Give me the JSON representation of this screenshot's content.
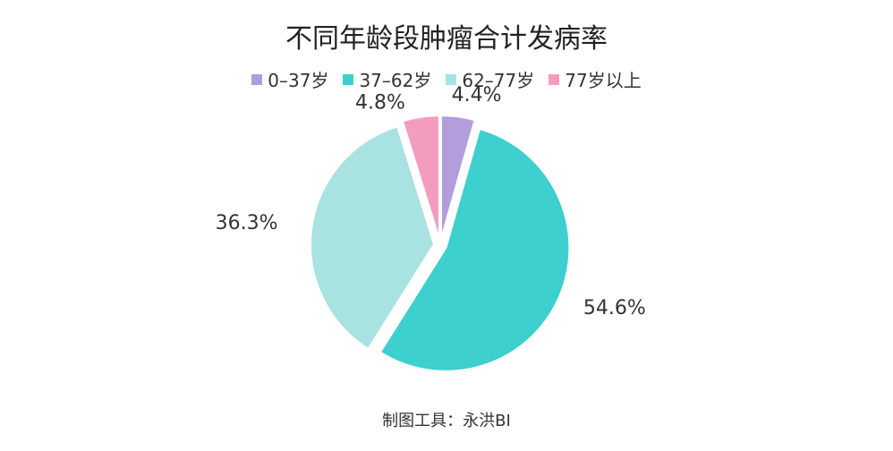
{
  "chart_data": {
    "type": "pie",
    "title": "不同年龄段肿瘤合计发病率",
    "categories": [
      "0–37岁",
      "37–62岁",
      "62–77岁",
      "77岁以上"
    ],
    "values": [
      4.4,
      54.6,
      36.3,
      4.8
    ],
    "labels": [
      "4.4%",
      "54.6%",
      "36.3%",
      "4.8%"
    ],
    "colors": [
      "#b39ddb",
      "#3ecfcf",
      "#a8e3e1",
      "#f49cbf"
    ],
    "legend_position": "top",
    "start_angle": "12 o'clock, clockwise",
    "exploded": true
  },
  "footer": "制图工具：永洪BI"
}
